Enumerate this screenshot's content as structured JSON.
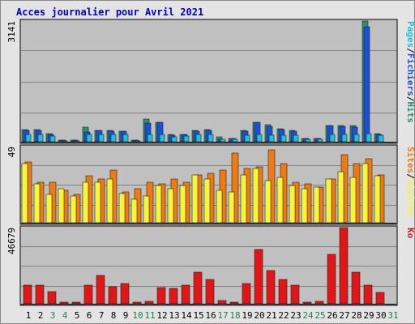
{
  "title": "Acces journalier pour Avril 2021",
  "colors": {
    "pages": "#19c3db",
    "fichiers": "#1a4fd9",
    "hits": "#2a8f73",
    "sites": "#f07a10",
    "visites": "#f5f53a",
    "ko": "#e21616",
    "weekday": "#000000",
    "weekend": "#1d7f4f"
  },
  "chart_data": [
    {
      "type": "bar",
      "panel": "hits",
      "ymax_label": "3141",
      "ylim": [
        0,
        3141
      ],
      "legend": [
        "Pages",
        "/",
        "Fichiers",
        "/",
        "Hits"
      ],
      "categories": [
        "1",
        "2",
        "3",
        "4",
        "5",
        "6",
        "7",
        "8",
        "9",
        "10",
        "11",
        "12",
        "13",
        "14",
        "15",
        "16",
        "17",
        "18",
        "19",
        "20",
        "21",
        "22",
        "23",
        "24",
        "25",
        "26",
        "27",
        "28",
        "29",
        "30",
        "31"
      ],
      "series": [
        {
          "name": "Hits",
          "values": [
            310,
            310,
            210,
            40,
            50,
            380,
            300,
            290,
            270,
            40,
            590,
            510,
            180,
            200,
            300,
            310,
            120,
            90,
            290,
            510,
            440,
            330,
            290,
            90,
            90,
            420,
            420,
            420,
            3141,
            220,
            0
          ]
        },
        {
          "name": "Fichiers",
          "values": [
            300,
            300,
            200,
            40,
            50,
            250,
            290,
            280,
            270,
            40,
            480,
            500,
            170,
            190,
            280,
            300,
            60,
            80,
            280,
            500,
            390,
            320,
            280,
            80,
            80,
            420,
            400,
            380,
            3000,
            200,
            0
          ]
        },
        {
          "name": "Pages",
          "values": [
            180,
            180,
            150,
            20,
            30,
            200,
            190,
            190,
            200,
            20,
            180,
            190,
            130,
            140,
            190,
            180,
            60,
            70,
            160,
            190,
            170,
            170,
            170,
            70,
            70,
            180,
            180,
            180,
            210,
            160,
            0
          ]
        }
      ]
    },
    {
      "type": "bar",
      "panel": "visites",
      "ymax_label": "49",
      "ylim": [
        0,
        49
      ],
      "legend": [
        "Sites",
        "/",
        "Visites"
      ],
      "categories": [
        "1",
        "2",
        "3",
        "4",
        "5",
        "6",
        "7",
        "8",
        "9",
        "10",
        "11",
        "12",
        "13",
        "14",
        "15",
        "16",
        "17",
        "18",
        "19",
        "20",
        "21",
        "22",
        "23",
        "24",
        "25",
        "26",
        "27",
        "28",
        "29",
        "30",
        "31"
      ],
      "series": [
        {
          "name": "Visites",
          "values": [
            38,
            25,
            18,
            22,
            17,
            26,
            26,
            28,
            19,
            15,
            17,
            24,
            22,
            24,
            31,
            28,
            21,
            20,
            31,
            35,
            27,
            29,
            24,
            22,
            23,
            28,
            33,
            29,
            38,
            30,
            0
          ]
        },
        {
          "name": "Sites",
          "values": [
            39,
            26,
            26,
            21,
            18,
            30,
            28,
            34,
            20,
            22,
            26,
            25,
            28,
            26,
            31,
            32,
            34,
            45,
            35,
            36,
            47,
            38,
            26,
            25,
            23,
            28,
            44,
            38,
            41,
            31,
            0
          ]
        }
      ]
    },
    {
      "type": "bar",
      "panel": "ko",
      "ymax_label": "46679",
      "ylim": [
        0,
        46679
      ],
      "legend": [
        "Ko"
      ],
      "categories": [
        "1",
        "2",
        "3",
        "4",
        "5",
        "6",
        "7",
        "8",
        "9",
        "10",
        "11",
        "12",
        "13",
        "14",
        "15",
        "16",
        "17",
        "18",
        "19",
        "20",
        "21",
        "22",
        "23",
        "24",
        "25",
        "26",
        "27",
        "28",
        "29",
        "30",
        "31"
      ],
      "series": [
        {
          "name": "Ko",
          "values": [
            11500,
            11200,
            7500,
            800,
            800,
            11500,
            17500,
            10300,
            12300,
            800,
            1500,
            9800,
            9200,
            11500,
            19500,
            14800,
            2200,
            800,
            12400,
            33200,
            20300,
            14800,
            11500,
            800,
            1500,
            30500,
            46679,
            19300,
            11200,
            7000,
            0
          ]
        }
      ]
    }
  ],
  "x_axis": {
    "labels": [
      "1",
      "2",
      "3",
      "4",
      "5",
      "6",
      "7",
      "8",
      "9",
      "10",
      "11",
      "12",
      "13",
      "14",
      "15",
      "16",
      "17",
      "18",
      "19",
      "20",
      "21",
      "22",
      "23",
      "24",
      "25",
      "26",
      "27",
      "28",
      "29",
      "30",
      "31"
    ],
    "weekend": [
      false,
      false,
      true,
      true,
      false,
      false,
      false,
      false,
      false,
      true,
      true,
      false,
      false,
      false,
      false,
      false,
      true,
      true,
      false,
      false,
      false,
      false,
      false,
      true,
      true,
      false,
      false,
      false,
      false,
      false,
      true
    ]
  }
}
